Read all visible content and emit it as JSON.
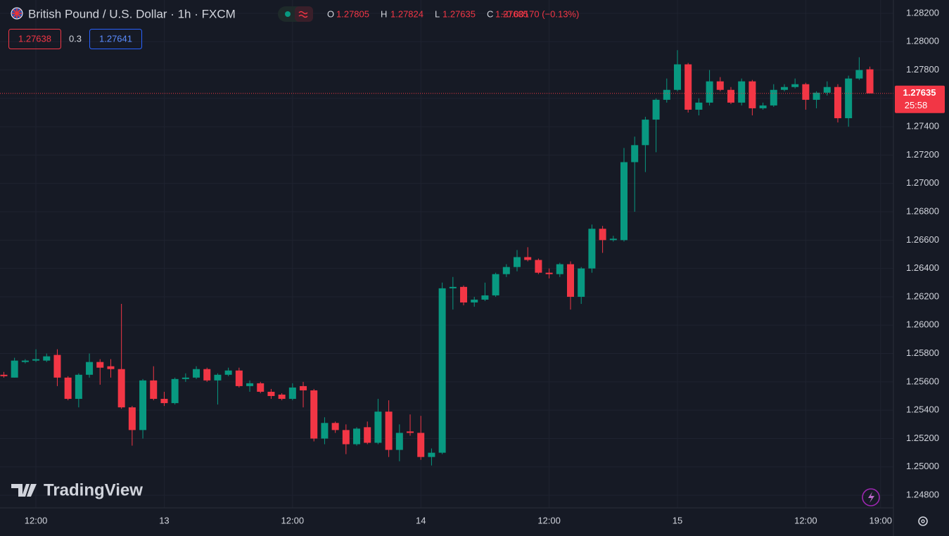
{
  "header": {
    "title": "British Pound / U.S. Dollar · 1h · FXCM",
    "ohlc_labels": [
      "O",
      "H",
      "L",
      "C"
    ],
    "ohlc_values": [
      1.27805,
      1.27824,
      1.27635,
      1.27635
    ],
    "change": "−0.00170 (−0.13%)",
    "bid": 1.27638,
    "spread": 0.3,
    "ask": 1.27641,
    "watermark": "TradingView"
  },
  "chart_data": {
    "type": "candlestick",
    "open": [
      1.2565,
      1.2563,
      1.2574,
      1.2575,
      1.2575,
      1.2579,
      1.2563,
      1.2548,
      1.2565,
      1.2574,
      1.2571,
      1.2569,
      1.2542,
      1.2526,
      1.2561,
      1.2548,
      1.2545,
      1.2562,
      1.2563,
      1.2569,
      1.2561,
      1.2565,
      1.2568,
      1.2557,
      1.2559,
      1.2553,
      1.2551,
      1.2548,
      1.2557,
      1.2554,
      1.252,
      1.2531,
      1.2526,
      1.2516,
      1.2528,
      1.2517,
      1.2539,
      1.2512,
      1.2525,
      1.2524,
      1.2507,
      1.251,
      1.2626,
      1.2627,
      1.2616,
      1.2618,
      1.2621,
      1.2636,
      1.2641,
      1.2648,
      1.2646,
      1.2637,
      1.2636,
      1.2643,
      1.262,
      1.264,
      1.2668,
      1.266,
      1.266,
      1.2715,
      1.2727,
      1.2745,
      1.2759,
      1.2766,
      1.2784,
      1.2752,
      1.2757,
      1.2772,
      1.2766,
      1.2757,
      1.2772,
      1.2753,
      1.2755,
      1.2766,
      1.2768,
      1.277,
      1.2759,
      1.2764,
      1.2768,
      1.2746,
      1.2774,
      1.27805
    ],
    "high": [
      1.2567,
      1.2577,
      1.2576,
      1.2583,
      1.258,
      1.2583,
      1.2564,
      1.2566,
      1.258,
      1.2576,
      1.2576,
      1.2615,
      1.2543,
      1.2562,
      1.2571,
      1.2553,
      1.2563,
      1.2566,
      1.2571,
      1.257,
      1.2566,
      1.257,
      1.257,
      1.2561,
      1.256,
      1.2555,
      1.2552,
      1.2559,
      1.256,
      1.2555,
      1.2535,
      1.2532,
      1.253,
      1.2528,
      1.2532,
      1.2548,
      1.2547,
      1.253,
      1.2537,
      1.2536,
      1.2513,
      1.263,
      1.2634,
      1.2628,
      1.262,
      1.263,
      1.2637,
      1.2643,
      1.2653,
      1.2655,
      1.2647,
      1.264,
      1.2644,
      1.2645,
      1.2641,
      1.2671,
      1.267,
      1.2663,
      1.2725,
      1.2733,
      1.2747,
      1.276,
      1.2774,
      1.2794,
      1.2785,
      1.276,
      1.278,
      1.2775,
      1.2768,
      1.2774,
      1.2773,
      1.2757,
      1.277,
      1.277,
      1.2774,
      1.2771,
      1.2765,
      1.2772,
      1.277,
      1.2776,
      1.2789,
      1.27824
    ],
    "low": [
      1.2563,
      1.2563,
      1.2573,
      1.2574,
      1.2574,
      1.2557,
      1.2547,
      1.2542,
      1.2563,
      1.2558,
      1.2563,
      1.2541,
      1.2515,
      1.252,
      1.2547,
      1.2543,
      1.2544,
      1.256,
      1.2562,
      1.256,
      1.2544,
      1.2564,
      1.2556,
      1.2553,
      1.2552,
      1.2548,
      1.2547,
      1.2547,
      1.2542,
      1.2518,
      1.2516,
      1.2524,
      1.2509,
      1.2515,
      1.2516,
      1.2516,
      1.2507,
      1.2504,
      1.2522,
      1.2505,
      1.2501,
      1.2509,
      1.2611,
      1.2614,
      1.2613,
      1.2617,
      1.262,
      1.2634,
      1.2638,
      1.2645,
      1.2636,
      1.2633,
      1.2634,
      1.2611,
      1.2615,
      1.2637,
      1.2651,
      1.2659,
      1.2659,
      1.268,
      1.2708,
      1.2722,
      1.2757,
      1.2765,
      1.275,
      1.2748,
      1.2755,
      1.2765,
      1.2756,
      1.2755,
      1.2748,
      1.2752,
      1.2754,
      1.2765,
      1.2767,
      1.2752,
      1.2753,
      1.2762,
      1.2743,
      1.274,
      1.2773,
      1.27635
    ],
    "close": [
      1.2564,
      1.2575,
      1.2575,
      1.2576,
      1.2578,
      1.2563,
      1.2548,
      1.2565,
      1.2574,
      1.257,
      1.2569,
      1.2542,
      1.2526,
      1.2561,
      1.2548,
      1.2545,
      1.2562,
      1.2563,
      1.2569,
      1.2561,
      1.2565,
      1.2568,
      1.2557,
      1.2559,
      1.2553,
      1.255,
      1.2548,
      1.2556,
      1.2554,
      1.252,
      1.2531,
      1.2526,
      1.2516,
      1.2527,
      1.2517,
      1.2539,
      1.2512,
      1.2524,
      1.2524,
      1.2507,
      1.251,
      1.2626,
      1.2627,
      1.2616,
      1.2618,
      1.2621,
      1.2636,
      1.2641,
      1.2648,
      1.2646,
      1.2637,
      1.2636,
      1.2643,
      1.262,
      1.264,
      1.2668,
      1.266,
      1.2661,
      1.2715,
      1.2727,
      1.2745,
      1.2759,
      1.2766,
      1.2784,
      1.2752,
      1.2757,
      1.2772,
      1.2766,
      1.2757,
      1.2772,
      1.2753,
      1.2755,
      1.2766,
      1.2768,
      1.277,
      1.2759,
      1.2764,
      1.2768,
      1.2746,
      1.2774,
      1.278,
      1.27635
    ],
    "up_color": "#089981",
    "down_color": "#f23645",
    "last_price": 1.27635,
    "countdown": "25:58",
    "xlim": [
      -0.36,
      83.2
    ],
    "xticks": [
      {
        "value": 3,
        "label": "12:00"
      },
      {
        "value": 15,
        "label": "13"
      },
      {
        "value": 27,
        "label": "12:00"
      },
      {
        "value": 39,
        "label": "14"
      },
      {
        "value": 51,
        "label": "12:00"
      },
      {
        "value": 63,
        "label": "15"
      },
      {
        "value": 75,
        "label": "12:00"
      },
      {
        "value": 82,
        "label": "19:00"
      }
    ],
    "ylim": [
      1.24711,
      1.28294
    ],
    "yticks": [
      {
        "value": 1.282,
        "label": "1.28200"
      },
      {
        "value": 1.28,
        "label": "1.28000"
      },
      {
        "value": 1.278,
        "label": "1.27800"
      },
      {
        "value": 1.276,
        "label": "1.27600"
      },
      {
        "value": 1.274,
        "label": "1.27400"
      },
      {
        "value": 1.272,
        "label": "1.27200"
      },
      {
        "value": 1.27,
        "label": "1.27000"
      },
      {
        "value": 1.268,
        "label": "1.26800"
      },
      {
        "value": 1.266,
        "label": "1.26600"
      },
      {
        "value": 1.264,
        "label": "1.26400"
      },
      {
        "value": 1.262,
        "label": "1.26200"
      },
      {
        "value": 1.26,
        "label": "1.26000"
      },
      {
        "value": 1.258,
        "label": "1.25800"
      },
      {
        "value": 1.256,
        "label": "1.25600"
      },
      {
        "value": 1.254,
        "label": "1.25400"
      },
      {
        "value": 1.252,
        "label": "1.25200"
      },
      {
        "value": 1.25,
        "label": "1.25000"
      },
      {
        "value": 1.248,
        "label": "1.24800"
      }
    ],
    "grid": true
  }
}
